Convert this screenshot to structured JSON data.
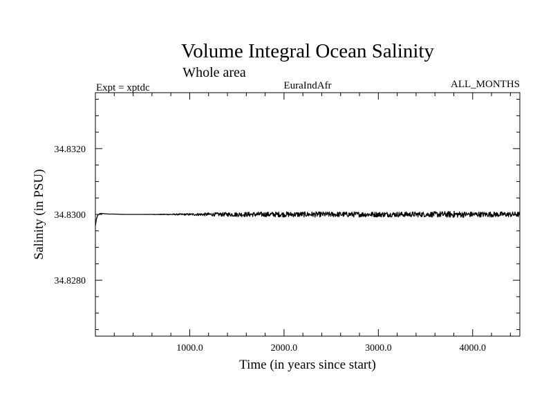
{
  "chart_data": {
    "type": "line",
    "title": "Volume Integral Ocean Salinity",
    "subtitle": "Whole area",
    "annotations": {
      "left": "Expt = xptdc",
      "center": "EuraIndAfr",
      "right": "ALL_MONTHS"
    },
    "xlabel": "Time (in years since start)",
    "ylabel": "Salinity (in PSU)",
    "xlim": [
      0,
      4500
    ],
    "ylim": [
      34.8263,
      34.8337
    ],
    "x_ticks": [
      {
        "value": 1000,
        "label": "1000.0"
      },
      {
        "value": 2000,
        "label": "2000.0"
      },
      {
        "value": 3000,
        "label": "3000.0"
      },
      {
        "value": 4000,
        "label": "4000.0"
      }
    ],
    "y_ticks": [
      {
        "value": 34.828,
        "label": "34.8280"
      },
      {
        "value": 34.83,
        "label": "34.8300"
      },
      {
        "value": 34.832,
        "label": "34.8320"
      }
    ],
    "grid": false,
    "series": [
      {
        "color": "#000000",
        "x": [
          0,
          10,
          25,
          50,
          75,
          100,
          150,
          200,
          300,
          500,
          700,
          1000,
          1200,
          1500,
          2000,
          2500,
          3000,
          3500,
          3800,
          4000,
          4500
        ],
        "y": [
          34.82965,
          34.82985,
          34.82998,
          34.83003,
          34.83003,
          34.83002,
          34.83001,
          34.83001,
          34.83,
          34.83,
          34.83,
          34.83,
          34.83,
          34.83,
          34.83,
          34.83,
          34.83,
          34.83,
          34.83,
          34.83,
          34.83
        ],
        "noise_amplitude": [
          0,
          0,
          0,
          0,
          0,
          0,
          0,
          0,
          0,
          0,
          1e-05,
          3e-05,
          5e-05,
          7e-05,
          8e-05,
          8e-05,
          8e-05,
          8e-05,
          0.0001,
          8e-05,
          8e-05
        ]
      }
    ]
  }
}
